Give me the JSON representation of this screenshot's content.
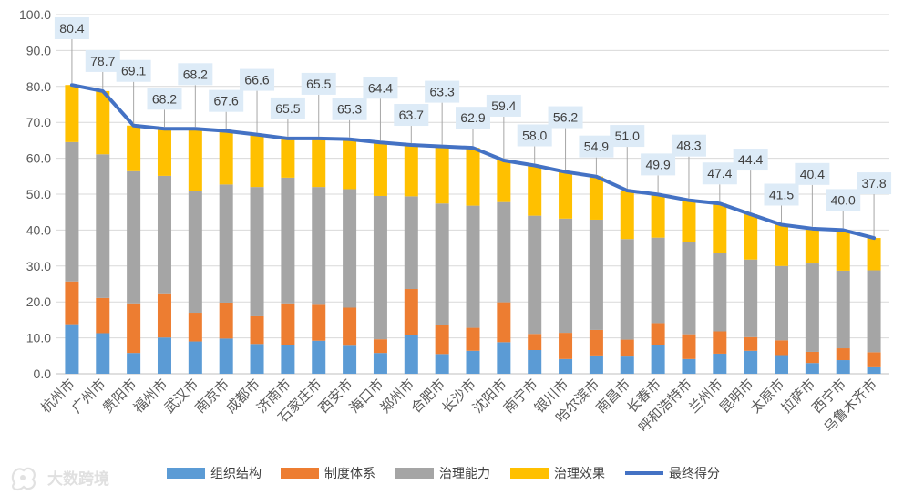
{
  "chart_data": {
    "type": "bar",
    "stacked": true,
    "title": "",
    "xlabel": "",
    "ylabel": "",
    "ylim": [
      0,
      100
    ],
    "ytick_labels": [
      "0.0",
      "10.0",
      "20.0",
      "30.0",
      "40.0",
      "50.0",
      "60.0",
      "70.0",
      "80.0",
      "90.0",
      "100.0"
    ],
    "categories": [
      "杭州市",
      "广州市",
      "贵阳市",
      "福州市",
      "武汉市",
      "南京市",
      "成都市",
      "济南市",
      "石家庄市",
      "西安市",
      "海口市",
      "郑州市",
      "合肥市",
      "长沙市",
      "沈阳市",
      "南宁市",
      "银川市",
      "哈尔滨市",
      "南昌市",
      "长春市",
      "呼和浩特市",
      "兰州市",
      "昆明市",
      "太原市",
      "拉萨市",
      "西宁市",
      "乌鲁木齐市"
    ],
    "series": [
      {
        "name": "组织结构",
        "color": "#5B9BD5",
        "values": [
          13.8,
          11.3,
          5.8,
          10.1,
          9.0,
          9.8,
          8.3,
          8.1,
          9.2,
          7.8,
          5.8,
          10.8,
          5.5,
          6.4,
          8.8,
          6.6,
          4.1,
          5.1,
          4.8,
          8.0,
          4.1,
          5.6,
          6.4,
          5.2,
          3.0,
          3.8,
          1.8
        ]
      },
      {
        "name": "制度体系",
        "color": "#ED7D31",
        "values": [
          11.9,
          9.8,
          13.8,
          12.3,
          8.0,
          10.0,
          7.7,
          11.5,
          10.0,
          10.6,
          3.8,
          12.8,
          8.0,
          6.4,
          11.1,
          4.5,
          7.3,
          7.1,
          4.7,
          6.1,
          6.9,
          6.2,
          3.8,
          4.1,
          3.1,
          3.3,
          4.2
        ]
      },
      {
        "name": "治理能力",
        "color": "#A5A5A5",
        "values": [
          38.8,
          40.0,
          36.8,
          32.7,
          33.9,
          32.9,
          36.0,
          35.0,
          32.8,
          33.0,
          39.9,
          25.8,
          33.9,
          34.0,
          27.9,
          32.9,
          31.8,
          30.7,
          28.0,
          23.8,
          25.8,
          21.9,
          21.6,
          20.7,
          24.6,
          21.6,
          22.8
        ]
      },
      {
        "name": "治理效果",
        "color": "#FFC000",
        "values": [
          15.9,
          17.6,
          12.7,
          13.1,
          17.3,
          14.9,
          14.6,
          10.9,
          13.5,
          13.9,
          14.9,
          14.3,
          15.9,
          16.1,
          11.6,
          14.0,
          13.0,
          12.0,
          13.5,
          12.0,
          11.5,
          13.7,
          12.6,
          11.5,
          9.7,
          11.3,
          9.0
        ]
      }
    ],
    "line": {
      "name": "最终得分",
      "color": "#4472C4",
      "values": [
        80.4,
        78.7,
        69.1,
        68.2,
        68.2,
        67.6,
        66.6,
        65.5,
        65.5,
        65.3,
        64.4,
        63.7,
        63.3,
        62.9,
        59.4,
        58.0,
        56.2,
        54.9,
        51.0,
        49.9,
        48.3,
        47.4,
        44.4,
        41.5,
        40.4,
        40.0,
        37.8
      ],
      "labels": [
        "80.4",
        "78.7",
        "69.1",
        "68.2",
        "68.2",
        "67.6",
        "66.6",
        "65.5",
        "65.5",
        "65.3",
        "64.4",
        "63.7",
        "63.3",
        "62.9",
        "59.4",
        "58.0",
        "56.2",
        "54.9",
        "51.0",
        "49.9",
        "48.3",
        "47.4",
        "44.4",
        "41.5",
        "40.4",
        "40.0",
        "37.8"
      ]
    },
    "legend": {
      "position": "bottom",
      "items": [
        "组织结构",
        "制度体系",
        "治理能力",
        "治理效果",
        "最终得分"
      ]
    },
    "grid": true
  },
  "watermark": {
    "text": "大数跨境"
  }
}
